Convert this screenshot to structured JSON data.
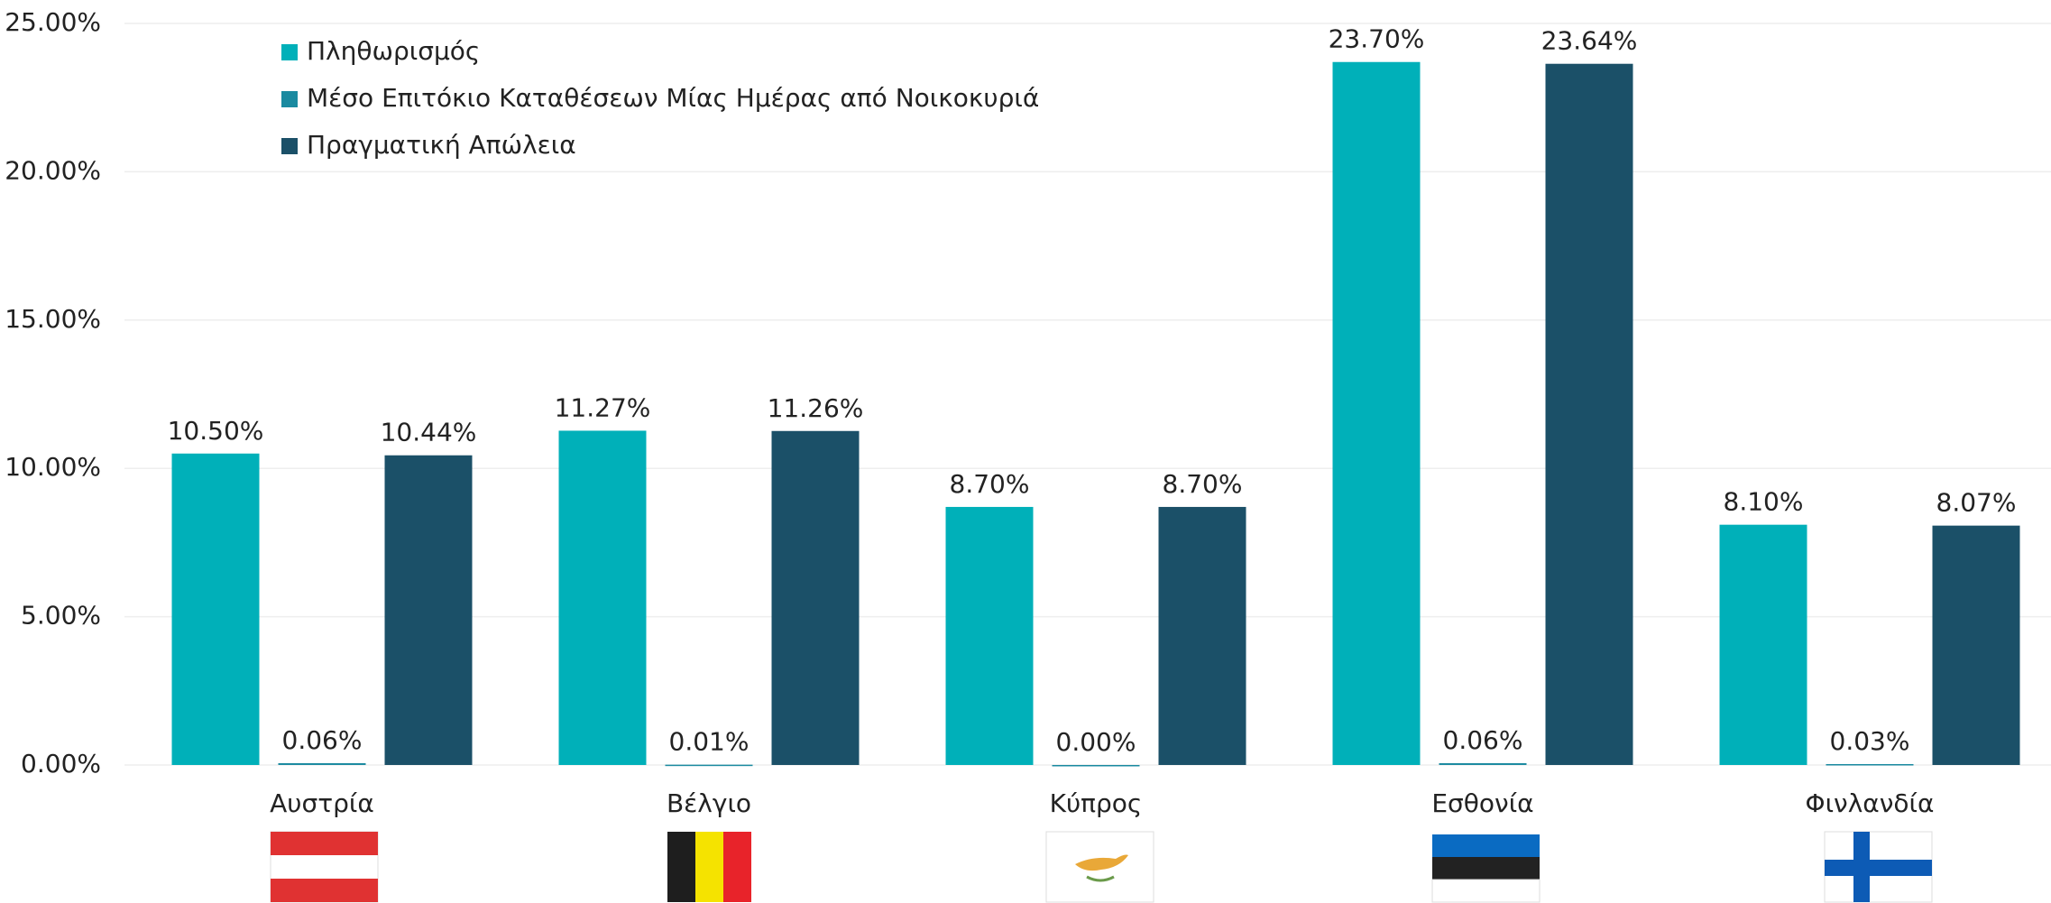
{
  "chart_data": {
    "type": "bar",
    "categories": [
      "Αυστρία",
      "Βέλγιο",
      "Κύπρος",
      "Εσθονία",
      "Φινλανδία"
    ],
    "series": [
      {
        "name": "Πληθωρισμός",
        "color": "#00b0b9",
        "values": [
          10.5,
          11.27,
          8.7,
          23.7,
          8.1
        ],
        "value_labels": [
          "10.50%",
          "11.27%",
          "8.70%",
          "23.70%",
          "8.10%"
        ]
      },
      {
        "name": "Μέσο Επιτόκιο Καταθέσεων Μίας Ημέρας από Νοικοκυριά",
        "color": "#1a8aa0",
        "values": [
          0.06,
          0.01,
          0.0,
          0.06,
          0.03
        ],
        "value_labels": [
          "0.06%",
          "0.01%",
          "0.00%",
          "0.06%",
          "0.03%"
        ]
      },
      {
        "name": "Πραγματική Απώλεια",
        "color": "#1b5068",
        "values": [
          10.44,
          11.26,
          8.7,
          23.64,
          8.07
        ],
        "value_labels": [
          "10.44%",
          "11.26%",
          "8.70%",
          "23.64%",
          "8.07%"
        ]
      }
    ],
    "ylim": [
      0,
      25
    ],
    "yticks": [
      {
        "value": 0,
        "label": "0.00%"
      },
      {
        "value": 5,
        "label": "5.00%"
      },
      {
        "value": 10,
        "label": "10.00%"
      },
      {
        "value": 15,
        "label": "15.00%"
      },
      {
        "value": 20,
        "label": "20.00%"
      },
      {
        "value": 25,
        "label": "25.00%"
      }
    ],
    "grid": true,
    "legend": "top-left"
  }
}
